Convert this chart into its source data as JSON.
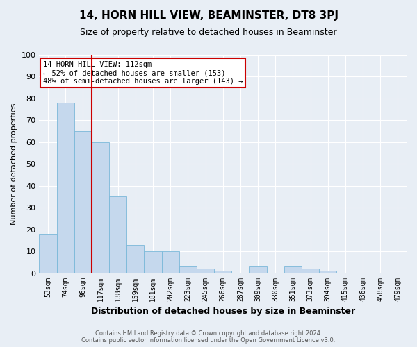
{
  "title": "14, HORN HILL VIEW, BEAMINSTER, DT8 3PJ",
  "subtitle": "Size of property relative to detached houses in Beaminster",
  "xlabel": "Distribution of detached houses by size in Beaminster",
  "ylabel": "Number of detached properties",
  "categories": [
    "53sqm",
    "74sqm",
    "96sqm",
    "117sqm",
    "138sqm",
    "159sqm",
    "181sqm",
    "202sqm",
    "223sqm",
    "245sqm",
    "266sqm",
    "287sqm",
    "309sqm",
    "330sqm",
    "351sqm",
    "373sqm",
    "394sqm",
    "415sqm",
    "436sqm",
    "458sqm",
    "479sqm"
  ],
  "values": [
    18,
    78,
    65,
    60,
    35,
    13,
    10,
    10,
    3,
    2,
    1,
    0,
    3,
    0,
    3,
    2,
    1,
    0,
    0,
    0,
    0
  ],
  "bar_color": "#c5d8ed",
  "bar_edge_color": "#7ab8d9",
  "background_color": "#e8eef5",
  "grid_color": "#ffffff",
  "red_line_index": 3,
  "annotation_line1": "14 HORN HILL VIEW: 112sqm",
  "annotation_line2": "← 52% of detached houses are smaller (153)",
  "annotation_line3": "48% of semi-detached houses are larger (143) →",
  "annotation_box_facecolor": "#ffffff",
  "annotation_box_edgecolor": "#cc0000",
  "ylim": [
    0,
    100
  ],
  "yticks": [
    0,
    10,
    20,
    30,
    40,
    50,
    60,
    70,
    80,
    90,
    100
  ],
  "footnote_line1": "Contains HM Land Registry data © Crown copyright and database right 2024.",
  "footnote_line2": "Contains public sector information licensed under the Open Government Licence v3.0.",
  "title_fontsize": 11,
  "subtitle_fontsize": 9,
  "xlabel_fontsize": 9,
  "ylabel_fontsize": 8,
  "tick_fontsize": 7,
  "annotation_fontsize": 7.5,
  "footnote_fontsize": 6
}
